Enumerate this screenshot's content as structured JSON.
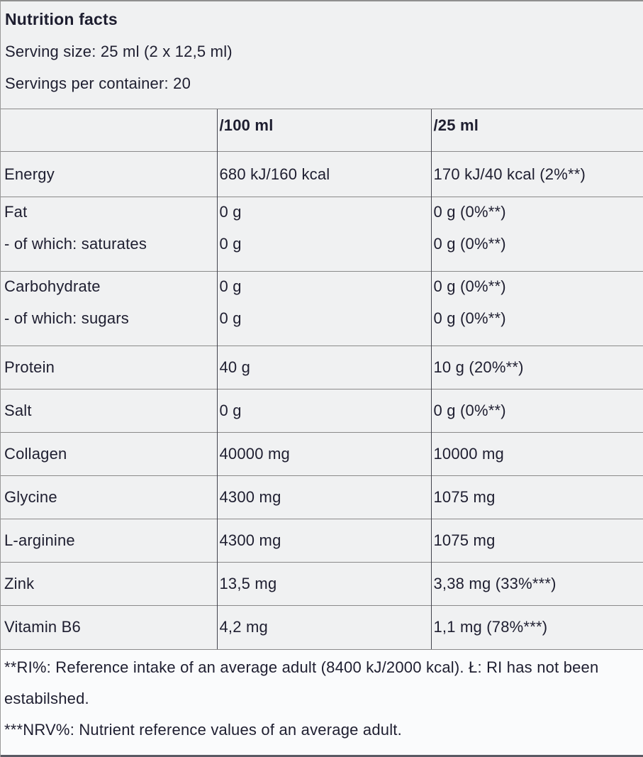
{
  "panel": {
    "title": "Nutrition facts",
    "serving_size": "Serving size: 25 ml (2 x 12,5 ml)",
    "servings_per_container": "Servings per container: 20"
  },
  "table": {
    "col_headers": {
      "blank": "",
      "per100": "/100 ml",
      "per25": "/25 ml"
    },
    "rows": {
      "energy": {
        "name": "Energy",
        "per100": "680 kJ/160 kcal",
        "per25": "170 kJ/40 kcal (2%**)"
      },
      "fat": {
        "name": "Fat",
        "per100": "0 g",
        "per25": "0 g (0%**)"
      },
      "saturates": {
        "name": "- of which: saturates",
        "per100": "0 g",
        "per25": "0 g (0%**)"
      },
      "carbohydrate": {
        "name": "Carbohydrate",
        "per100": "0 g",
        "per25": "0 g (0%**)"
      },
      "sugars": {
        "name": "- of which: sugars",
        "per100": "0 g",
        "per25": "0 g (0%**)"
      },
      "protein": {
        "name": "Protein",
        "per100": "40 g",
        "per25": "10 g (20%**)"
      },
      "salt": {
        "name": "Salt",
        "per100": "0 g",
        "per25": "0 g (0%**)"
      },
      "collagen": {
        "name": "Collagen",
        "per100": "40000 mg",
        "per25": "10000 mg"
      },
      "glycine": {
        "name": "Glycine",
        "per100": "4300 mg",
        "per25": "1075 mg"
      },
      "l_arginine": {
        "name": "L-arginine",
        "per100": "4300 mg",
        "per25": "1075 mg"
      },
      "zink": {
        "name": "Zink",
        "per100": "13,5 mg",
        "per25": "3,38 mg (33%***)"
      },
      "vitamin_b6": {
        "name": "Vitamin B6",
        "per100": "4,2 mg",
        "per25": "1,1 mg (78%***)"
      }
    }
  },
  "footnotes": {
    "ri": "**RI%: Reference intake of an average adult (8400 kJ/2000 kcal). Ł: RI has not been estabilshed.",
    "nrv": "***NRV%: Nutrient reference values of an average adult."
  },
  "colors": {
    "background": "#f0f1f2",
    "footnote_background": "#fafbfc",
    "text": "#1e1e30",
    "grid_line": "#8a8a8a",
    "column_line": "#43434e",
    "bottom_bar": "#5a5a64"
  }
}
